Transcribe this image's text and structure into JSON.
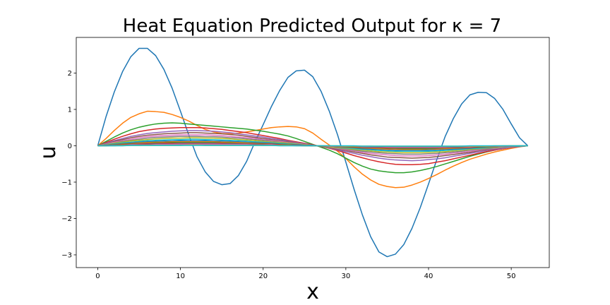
{
  "chart_data": {
    "type": "line",
    "title": "Heat Equation Predicted Output for κ = 7",
    "xlabel": "x",
    "ylabel": "u",
    "xlim": [
      -2.6,
      54.6
    ],
    "ylim": [
      -3.35,
      2.98
    ],
    "xticks": [
      0,
      10,
      20,
      30,
      40,
      50
    ],
    "xtick_labels": [
      "0",
      "10",
      "20",
      "30",
      "40",
      "50"
    ],
    "yticks": [
      -3,
      -2,
      -1,
      0,
      1,
      2
    ],
    "ytick_labels": [
      "−3",
      "−2",
      "−1",
      "0",
      "1",
      "2"
    ],
    "grid": false,
    "legend": "none",
    "x": [
      0,
      1,
      2,
      3,
      4,
      5,
      6,
      7,
      8,
      9,
      10,
      11,
      12,
      13,
      14,
      15,
      16,
      17,
      18,
      19,
      20,
      21,
      22,
      23,
      24,
      25,
      26,
      27,
      28,
      29,
      30,
      31,
      32,
      33,
      34,
      35,
      36,
      37,
      38,
      39,
      40,
      41,
      42,
      43,
      44,
      45,
      46,
      47,
      48,
      49,
      50,
      51,
      52
    ],
    "series": [
      {
        "color": "#1f77b4",
        "values": [
          0,
          0.8,
          1.48,
          2.04,
          2.45,
          2.68,
          2.68,
          2.48,
          2.1,
          1.58,
          0.95,
          0.3,
          -0.3,
          -0.72,
          -0.98,
          -1.07,
          -1.04,
          -0.82,
          -0.43,
          0.1,
          0.58,
          1.08,
          1.52,
          1.88,
          2.06,
          2.08,
          1.9,
          1.5,
          0.95,
          0.3,
          -0.45,
          -1.2,
          -1.9,
          -2.5,
          -2.92,
          -3.05,
          -2.98,
          -2.72,
          -2.27,
          -1.7,
          -1.05,
          -0.38,
          0.25,
          0.75,
          1.15,
          1.4,
          1.47,
          1.46,
          1.3,
          1.0,
          0.6,
          0.22,
          0
        ]
      },
      {
        "color": "#ff7f0e",
        "values": [
          0,
          0.2,
          0.42,
          0.62,
          0.78,
          0.88,
          0.95,
          0.94,
          0.92,
          0.86,
          0.78,
          0.68,
          0.56,
          0.45,
          0.38,
          0.34,
          0.33,
          0.35,
          0.38,
          0.42,
          0.46,
          0.5,
          0.52,
          0.53,
          0.52,
          0.47,
          0.35,
          0.18,
          0.02,
          -0.15,
          -0.35,
          -0.58,
          -0.78,
          -0.94,
          -1.06,
          -1.12,
          -1.15,
          -1.14,
          -1.08,
          -1.0,
          -0.9,
          -0.79,
          -0.67,
          -0.56,
          -0.46,
          -0.37,
          -0.3,
          -0.23,
          -0.17,
          -0.12,
          -0.07,
          -0.03,
          0
        ]
      },
      {
        "color": "#2ca02c",
        "values": [
          0,
          0.12,
          0.24,
          0.35,
          0.44,
          0.51,
          0.56,
          0.6,
          0.62,
          0.63,
          0.62,
          0.6,
          0.58,
          0.56,
          0.54,
          0.52,
          0.5,
          0.48,
          0.46,
          0.43,
          0.4,
          0.36,
          0.32,
          0.27,
          0.2,
          0.12,
          0.04,
          -0.04,
          -0.12,
          -0.22,
          -0.34,
          -0.46,
          -0.56,
          -0.64,
          -0.69,
          -0.72,
          -0.74,
          -0.74,
          -0.72,
          -0.68,
          -0.63,
          -0.57,
          -0.5,
          -0.43,
          -0.36,
          -0.29,
          -0.23,
          -0.17,
          -0.12,
          -0.08,
          -0.04,
          -0.02,
          0
        ]
      },
      {
        "color": "#d62728",
        "values": [
          0,
          0.09,
          0.18,
          0.26,
          0.33,
          0.39,
          0.43,
          0.46,
          0.48,
          0.49,
          0.5,
          0.5,
          0.5,
          0.49,
          0.47,
          0.45,
          0.42,
          0.39,
          0.36,
          0.32,
          0.28,
          0.24,
          0.2,
          0.15,
          0.11,
          0.07,
          0.03,
          -0.02,
          -0.07,
          -0.13,
          -0.2,
          -0.27,
          -0.33,
          -0.39,
          -0.44,
          -0.48,
          -0.51,
          -0.52,
          -0.52,
          -0.51,
          -0.49,
          -0.45,
          -0.41,
          -0.36,
          -0.31,
          -0.26,
          -0.21,
          -0.16,
          -0.12,
          -0.08,
          -0.05,
          -0.02,
          0
        ]
      },
      {
        "color": "#9467bd",
        "values": [
          0,
          0.07,
          0.14,
          0.2,
          0.26,
          0.3,
          0.34,
          0.36,
          0.38,
          0.4,
          0.41,
          0.42,
          0.42,
          0.41,
          0.4,
          0.38,
          0.36,
          0.33,
          0.3,
          0.27,
          0.24,
          0.2,
          0.17,
          0.13,
          0.09,
          0.06,
          0.02,
          -0.02,
          -0.06,
          -0.11,
          -0.16,
          -0.21,
          -0.26,
          -0.3,
          -0.34,
          -0.37,
          -0.39,
          -0.4,
          -0.41,
          -0.4,
          -0.38,
          -0.36,
          -0.33,
          -0.29,
          -0.25,
          -0.21,
          -0.17,
          -0.13,
          -0.1,
          -0.07,
          -0.04,
          -0.02,
          0
        ]
      },
      {
        "color": "#8c564b",
        "values": [
          0,
          0.06,
          0.12,
          0.17,
          0.22,
          0.26,
          0.29,
          0.31,
          0.33,
          0.34,
          0.35,
          0.36,
          0.36,
          0.35,
          0.34,
          0.33,
          0.31,
          0.29,
          0.26,
          0.23,
          0.2,
          0.17,
          0.14,
          0.11,
          0.08,
          0.05,
          0.02,
          -0.02,
          -0.05,
          -0.09,
          -0.13,
          -0.17,
          -0.21,
          -0.25,
          -0.28,
          -0.31,
          -0.32,
          -0.33,
          -0.34,
          -0.33,
          -0.32,
          -0.3,
          -0.27,
          -0.24,
          -0.21,
          -0.18,
          -0.14,
          -0.11,
          -0.08,
          -0.06,
          -0.03,
          -0.01,
          0
        ]
      },
      {
        "color": "#e377c2",
        "values": [
          0,
          0.05,
          0.1,
          0.14,
          0.18,
          0.22,
          0.25,
          0.27,
          0.28,
          0.29,
          0.3,
          0.3,
          0.3,
          0.3,
          0.29,
          0.28,
          0.26,
          0.24,
          0.22,
          0.2,
          0.17,
          0.15,
          0.12,
          0.09,
          0.07,
          0.04,
          0.01,
          -0.01,
          -0.04,
          -0.07,
          -0.11,
          -0.14,
          -0.18,
          -0.21,
          -0.23,
          -0.25,
          -0.27,
          -0.28,
          -0.28,
          -0.28,
          -0.27,
          -0.25,
          -0.23,
          -0.2,
          -0.18,
          -0.15,
          -0.12,
          -0.09,
          -0.07,
          -0.05,
          -0.03,
          -0.01,
          0
        ]
      },
      {
        "color": "#7f7f7f",
        "values": [
          0,
          0.04,
          0.08,
          0.12,
          0.15,
          0.18,
          0.21,
          0.23,
          0.24,
          0.25,
          0.26,
          0.26,
          0.26,
          0.25,
          0.25,
          0.24,
          0.22,
          0.21,
          0.19,
          0.17,
          0.15,
          0.13,
          0.1,
          0.08,
          0.06,
          0.03,
          0.01,
          -0.01,
          -0.04,
          -0.06,
          -0.09,
          -0.12,
          -0.15,
          -0.17,
          -0.19,
          -0.21,
          -0.22,
          -0.23,
          -0.23,
          -0.23,
          -0.22,
          -0.21,
          -0.19,
          -0.17,
          -0.15,
          -0.12,
          -0.1,
          -0.08,
          -0.06,
          -0.04,
          -0.02,
          -0.01,
          0
        ]
      },
      {
        "color": "#bcbd22",
        "values": [
          0,
          0.03,
          0.07,
          0.1,
          0.13,
          0.15,
          0.17,
          0.19,
          0.2,
          0.21,
          0.21,
          0.22,
          0.22,
          0.21,
          0.21,
          0.2,
          0.19,
          0.17,
          0.16,
          0.14,
          0.12,
          0.1,
          0.09,
          0.07,
          0.05,
          0.03,
          0.01,
          -0.01,
          -0.03,
          -0.05,
          -0.07,
          -0.1,
          -0.12,
          -0.14,
          -0.16,
          -0.17,
          -0.18,
          -0.19,
          -0.19,
          -0.19,
          -0.18,
          -0.17,
          -0.16,
          -0.14,
          -0.12,
          -0.1,
          -0.08,
          -0.06,
          -0.05,
          -0.03,
          -0.02,
          -0.01,
          0
        ]
      },
      {
        "color": "#17becf",
        "values": [
          0,
          0.03,
          0.05,
          0.08,
          0.1,
          0.12,
          0.14,
          0.15,
          0.16,
          0.17,
          0.17,
          0.18,
          0.18,
          0.17,
          0.17,
          0.16,
          0.15,
          0.14,
          0.13,
          0.11,
          0.1,
          0.08,
          0.07,
          0.05,
          0.04,
          0.02,
          0.01,
          -0.01,
          -0.02,
          -0.04,
          -0.06,
          -0.08,
          -0.1,
          -0.11,
          -0.13,
          -0.14,
          -0.15,
          -0.15,
          -0.15,
          -0.15,
          -0.15,
          -0.14,
          -0.13,
          -0.11,
          -0.1,
          -0.08,
          -0.07,
          -0.05,
          -0.04,
          -0.03,
          -0.02,
          -0.01,
          0
        ]
      },
      {
        "color": "#1f77b4",
        "values": [
          0,
          0.02,
          0.04,
          0.06,
          0.08,
          0.1,
          0.11,
          0.12,
          0.13,
          0.13,
          0.14,
          0.14,
          0.14,
          0.14,
          0.13,
          0.13,
          0.12,
          0.11,
          0.1,
          0.09,
          0.08,
          0.07,
          0.05,
          0.04,
          0.03,
          0.02,
          0.01,
          -0.01,
          -0.02,
          -0.03,
          -0.05,
          -0.06,
          -0.08,
          -0.09,
          -0.1,
          -0.11,
          -0.12,
          -0.12,
          -0.12,
          -0.12,
          -0.12,
          -0.11,
          -0.1,
          -0.09,
          -0.08,
          -0.07,
          -0.05,
          -0.04,
          -0.03,
          -0.02,
          -0.01,
          -0.01,
          0
        ]
      },
      {
        "color": "#ff7f0e",
        "values": [
          0,
          0.02,
          0.03,
          0.05,
          0.06,
          0.08,
          0.09,
          0.1,
          0.1,
          0.11,
          0.11,
          0.11,
          0.11,
          0.11,
          0.11,
          0.1,
          0.1,
          0.09,
          0.08,
          0.07,
          0.06,
          0.05,
          0.04,
          0.03,
          0.02,
          0.01,
          0.0,
          -0.01,
          -0.02,
          -0.03,
          -0.04,
          -0.05,
          -0.06,
          -0.07,
          -0.08,
          -0.09,
          -0.09,
          -0.1,
          -0.1,
          -0.1,
          -0.09,
          -0.09,
          -0.08,
          -0.07,
          -0.06,
          -0.05,
          -0.04,
          -0.03,
          -0.03,
          -0.02,
          -0.01,
          0.0,
          0
        ]
      },
      {
        "color": "#2ca02c",
        "values": [
          0,
          0.01,
          0.03,
          0.04,
          0.05,
          0.06,
          0.07,
          0.08,
          0.08,
          0.09,
          0.09,
          0.09,
          0.09,
          0.09,
          0.09,
          0.08,
          0.08,
          0.07,
          0.06,
          0.06,
          0.05,
          0.04,
          0.04,
          0.03,
          0.02,
          0.01,
          0.0,
          -0.01,
          -0.01,
          -0.02,
          -0.03,
          -0.04,
          -0.05,
          -0.06,
          -0.06,
          -0.07,
          -0.07,
          -0.08,
          -0.08,
          -0.08,
          -0.08,
          -0.07,
          -0.06,
          -0.06,
          -0.05,
          -0.04,
          -0.04,
          -0.03,
          -0.02,
          -0.01,
          -0.01,
          0.0,
          0
        ]
      },
      {
        "color": "#d62728",
        "values": [
          0,
          0.01,
          0.02,
          0.03,
          0.04,
          0.05,
          0.06,
          0.06,
          0.07,
          0.07,
          0.07,
          0.07,
          0.07,
          0.07,
          0.07,
          0.07,
          0.06,
          0.06,
          0.05,
          0.05,
          0.04,
          0.04,
          0.03,
          0.02,
          0.02,
          0.01,
          0.0,
          -0.01,
          -0.01,
          -0.02,
          -0.02,
          -0.03,
          -0.04,
          -0.05,
          -0.05,
          -0.06,
          -0.06,
          -0.06,
          -0.06,
          -0.06,
          -0.06,
          -0.06,
          -0.05,
          -0.05,
          -0.04,
          -0.04,
          -0.03,
          -0.02,
          -0.02,
          -0.01,
          -0.01,
          0.0,
          0
        ]
      },
      {
        "color": "#9467bd",
        "values": [
          0,
          0.01,
          0.02,
          0.02,
          0.03,
          0.04,
          0.04,
          0.05,
          0.05,
          0.05,
          0.06,
          0.06,
          0.06,
          0.06,
          0.06,
          0.05,
          0.05,
          0.05,
          0.04,
          0.04,
          0.03,
          0.03,
          0.02,
          0.02,
          0.01,
          0.01,
          0.0,
          0.0,
          -0.01,
          -0.01,
          -0.02,
          -0.02,
          -0.03,
          -0.04,
          -0.04,
          -0.04,
          -0.05,
          -0.05,
          -0.05,
          -0.05,
          -0.05,
          -0.05,
          -0.04,
          -0.04,
          -0.03,
          -0.03,
          -0.02,
          -0.02,
          -0.01,
          -0.01,
          -0.01,
          0.0,
          0
        ]
      },
      {
        "color": "#8c564b",
        "values": [
          0,
          0.01,
          0.01,
          0.02,
          0.02,
          0.03,
          0.03,
          0.04,
          0.04,
          0.04,
          0.04,
          0.04,
          0.04,
          0.04,
          0.04,
          0.04,
          0.04,
          0.04,
          0.03,
          0.03,
          0.03,
          0.02,
          0.02,
          0.01,
          0.01,
          0.01,
          0.0,
          0.0,
          -0.01,
          -0.01,
          -0.01,
          -0.02,
          -0.02,
          -0.03,
          -0.03,
          -0.03,
          -0.04,
          -0.04,
          -0.04,
          -0.04,
          -0.04,
          -0.04,
          -0.03,
          -0.03,
          -0.03,
          -0.02,
          -0.02,
          -0.01,
          -0.01,
          -0.01,
          0.0,
          0.0,
          0
        ]
      },
      {
        "color": "#e377c2",
        "values": [
          0,
          0.0,
          0.01,
          0.01,
          0.02,
          0.02,
          0.02,
          0.03,
          0.03,
          0.03,
          0.03,
          0.03,
          0.03,
          0.03,
          0.03,
          0.03,
          0.03,
          0.03,
          0.03,
          0.02,
          0.02,
          0.02,
          0.01,
          0.01,
          0.01,
          0.0,
          0.0,
          0.0,
          -0.01,
          -0.01,
          -0.01,
          -0.01,
          -0.02,
          -0.02,
          -0.02,
          -0.03,
          -0.03,
          -0.03,
          -0.03,
          -0.03,
          -0.03,
          -0.03,
          -0.03,
          -0.02,
          -0.02,
          -0.02,
          -0.01,
          -0.01,
          -0.01,
          -0.01,
          0.0,
          0.0,
          0
        ]
      },
      {
        "color": "#7f7f7f",
        "values": [
          0,
          0.0,
          0.01,
          0.01,
          0.01,
          0.01,
          0.02,
          0.02,
          0.02,
          0.02,
          0.02,
          0.02,
          0.02,
          0.02,
          0.02,
          0.02,
          0.02,
          0.02,
          0.02,
          0.02,
          0.01,
          0.01,
          0.01,
          0.01,
          0.01,
          0.0,
          0.0,
          0.0,
          0.0,
          -0.01,
          -0.01,
          -0.01,
          -0.01,
          -0.01,
          -0.02,
          -0.02,
          -0.02,
          -0.02,
          -0.02,
          -0.02,
          -0.02,
          -0.02,
          -0.02,
          -0.02,
          -0.01,
          -0.01,
          -0.01,
          -0.01,
          -0.01,
          0.0,
          0.0,
          0.0,
          0
        ]
      },
      {
        "color": "#bcbd22",
        "values": [
          0,
          0.0,
          0.0,
          0.01,
          0.01,
          0.01,
          0.01,
          0.01,
          0.01,
          0.01,
          0.01,
          0.02,
          0.02,
          0.01,
          0.01,
          0.01,
          0.01,
          0.01,
          0.01,
          0.01,
          0.01,
          0.01,
          0.01,
          0.01,
          0.0,
          0.0,
          0.0,
          0.0,
          0.0,
          0.0,
          -0.01,
          -0.01,
          -0.01,
          -0.01,
          -0.01,
          -0.01,
          -0.01,
          -0.01,
          -0.01,
          -0.01,
          -0.01,
          -0.01,
          -0.01,
          -0.01,
          -0.01,
          -0.01,
          -0.01,
          -0.01,
          0.0,
          0.0,
          0.0,
          0.0,
          0
        ]
      },
      {
        "color": "#17becf",
        "values": [
          0,
          0.0,
          0.0,
          0.0,
          0.01,
          0.01,
          0.01,
          0.01,
          0.01,
          0.01,
          0.01,
          0.01,
          0.01,
          0.01,
          0.01,
          0.01,
          0.01,
          0.01,
          0.01,
          0.01,
          0.01,
          0.01,
          0.0,
          0.0,
          0.0,
          0.0,
          0.0,
          0.0,
          0.0,
          0.0,
          0.0,
          0.0,
          -0.01,
          -0.01,
          -0.01,
          -0.01,
          -0.01,
          -0.01,
          -0.01,
          -0.01,
          -0.01,
          -0.01,
          -0.01,
          -0.01,
          -0.01,
          0.0,
          0.0,
          0.0,
          0.0,
          0.0,
          0.0,
          0.0,
          0
        ]
      }
    ]
  }
}
